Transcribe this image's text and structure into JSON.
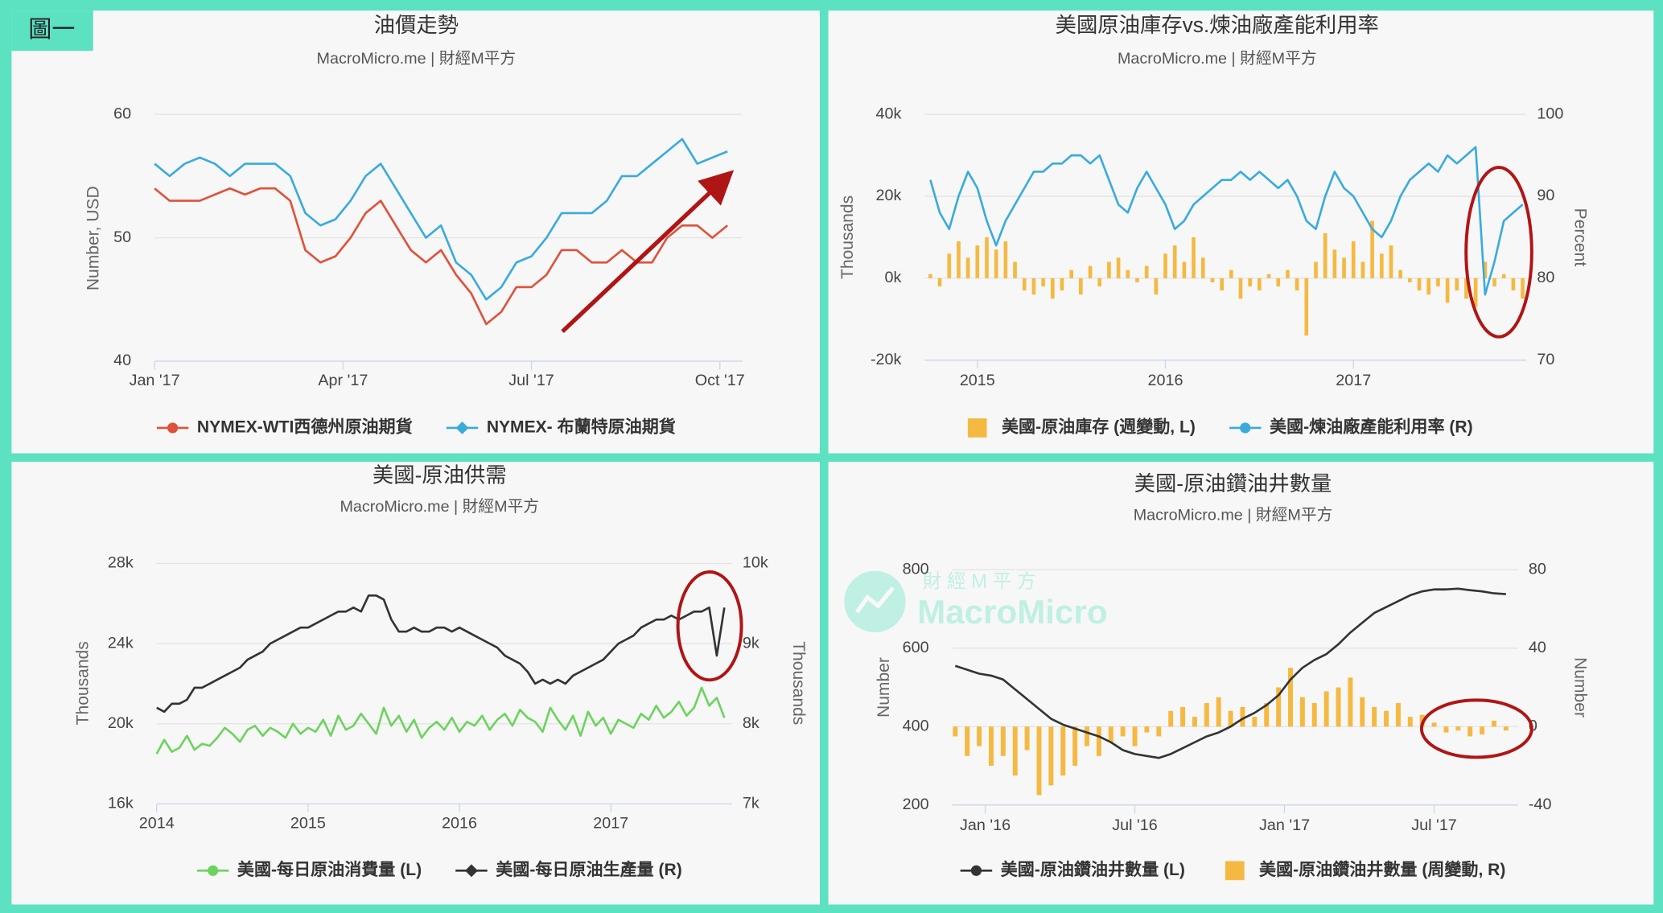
{
  "label": "圖一",
  "watermark_cn": "財 經 M 平 方",
  "watermark_en": "MacroMicro",
  "chart_data": [
    {
      "type": "line",
      "title": "油價走勢",
      "subtitle": "MacroMicro.me | 財經M平方",
      "y_label": "Number, USD",
      "x": [
        2017,
        2017.02,
        2017.04,
        2017.06,
        2017.08,
        2017.1,
        2017.12,
        2017.14,
        2017.16,
        2017.18,
        2017.2,
        2017.22,
        2017.24,
        2017.26,
        2017.28,
        2017.3,
        2017.32,
        2017.34,
        2017.36,
        2017.38,
        2017.4,
        2017.42,
        2017.44,
        2017.46,
        2017.48,
        2017.5,
        2017.52,
        2017.54,
        2017.56,
        2017.58,
        2017.6,
        2017.62,
        2017.64,
        2017.66,
        2017.68,
        2017.7,
        2017.72,
        2017.74,
        2017.76
      ],
      "xlim": [
        2017,
        2017.78
      ],
      "xticks": [
        {
          "value": 2017,
          "label": "Jan '17"
        },
        {
          "value": 2017.25,
          "label": "Apr '17"
        },
        {
          "value": 2017.5,
          "label": "Jul '17"
        },
        {
          "value": 2017.75,
          "label": "Oct '17"
        }
      ],
      "ylim": [
        40,
        60
      ],
      "yticks": [
        40,
        50,
        60
      ],
      "grid": true,
      "series": [
        {
          "name": "NYMEX-WTI西德州原油期貨",
          "color": "#e0513a",
          "marker": "circle",
          "type": "line",
          "axis": "y",
          "values": [
            54,
            53,
            53,
            53,
            53.5,
            54,
            53.5,
            54,
            54,
            53,
            49,
            48,
            48.5,
            50,
            52,
            53,
            51,
            49,
            48,
            49,
            47,
            45.5,
            43,
            44,
            46,
            46,
            47,
            49,
            49,
            48,
            48,
            49,
            48,
            48,
            50,
            51,
            51,
            50,
            51
          ]
        },
        {
          "name": "NYMEX- 布蘭特原油期貨",
          "color": "#3aabdb",
          "marker": "diamond",
          "type": "line",
          "axis": "y",
          "values": [
            56,
            55,
            56,
            56.5,
            56,
            55,
            56,
            56,
            56,
            55,
            52,
            51,
            51.5,
            53,
            55,
            56,
            54,
            52,
            50,
            51,
            48,
            47,
            45,
            46,
            48,
            48.5,
            50,
            52,
            52,
            52,
            53,
            55,
            55,
            56,
            57,
            58,
            56,
            56.5,
            57
          ]
        }
      ]
    },
    {
      "type": "combo",
      "title": "美國原油庫存vs.煉油廠產能利用率",
      "subtitle": "MacroMicro.me | 財經M平方",
      "y_label": "Thousands",
      "y2_label": "Percent",
      "x": [
        2014.75,
        2014.8,
        2014.85,
        2014.9,
        2014.95,
        2015,
        2015.05,
        2015.1,
        2015.15,
        2015.2,
        2015.25,
        2015.3,
        2015.35,
        2015.4,
        2015.45,
        2015.5,
        2015.55,
        2015.6,
        2015.65,
        2015.7,
        2015.75,
        2015.8,
        2015.85,
        2015.9,
        2015.95,
        2016,
        2016.05,
        2016.1,
        2016.15,
        2016.2,
        2016.25,
        2016.3,
        2016.35,
        2016.4,
        2016.45,
        2016.5,
        2016.55,
        2016.6,
        2016.65,
        2016.7,
        2016.75,
        2016.8,
        2016.85,
        2016.9,
        2016.95,
        2017,
        2017.05,
        2017.1,
        2017.15,
        2017.2,
        2017.25,
        2017.3,
        2017.35,
        2017.4,
        2017.45,
        2017.5,
        2017.55,
        2017.6,
        2017.65,
        2017.7,
        2017.75,
        2017.8,
        2017.85,
        2017.9
      ],
      "xlim": [
        2014.72,
        2017.92
      ],
      "xticks": [
        2015,
        2016,
        2017
      ],
      "ylim": [
        -20000,
        40000
      ],
      "yticks": [
        {
          "value": -20000,
          "label": "-20k"
        },
        {
          "value": 0,
          "label": "0k"
        },
        {
          "value": 20000,
          "label": "20k"
        },
        {
          "value": 40000,
          "label": "40k"
        }
      ],
      "y2lim": [
        70,
        100
      ],
      "y2ticks": [
        70,
        80,
        90,
        100
      ],
      "grid": true,
      "series": [
        {
          "name": "美國-原油庫存 (週變動, L)",
          "color": "#f5b942",
          "marker": "square",
          "type": "bar",
          "axis": "y",
          "values": [
            1000,
            -2000,
            6000,
            9000,
            5000,
            8000,
            10000,
            7000,
            9000,
            4000,
            -3000,
            -4000,
            -2000,
            -5000,
            -3000,
            2000,
            -4000,
            3000,
            -2000,
            4000,
            5000,
            2000,
            -1000,
            3000,
            -4000,
            6000,
            8000,
            4000,
            10000,
            5000,
            -1000,
            -3000,
            2000,
            -5000,
            -2000,
            -3000,
            1000,
            -2000,
            2000,
            -3000,
            -14000,
            4000,
            11000,
            7000,
            5000,
            9000,
            4000,
            14000,
            6000,
            8000,
            2000,
            -1000,
            -3000,
            -4000,
            -2000,
            -6000,
            -3000,
            -5000,
            -7000,
            4000,
            -2000,
            1000,
            -3000,
            -5000
          ]
        },
        {
          "name": "美國-煉油廠產能利用率 (R)",
          "color": "#3aabdb",
          "marker": "circle",
          "type": "line",
          "axis": "y2",
          "values": [
            92,
            88,
            86,
            90,
            93,
            91,
            87,
            84,
            87,
            89,
            91,
            93,
            93,
            94,
            94,
            95,
            95,
            94,
            95,
            92,
            89,
            88,
            91,
            93,
            91,
            89,
            86,
            87,
            89,
            90,
            91,
            92,
            92,
            93,
            92,
            93,
            92,
            91,
            92,
            90,
            87,
            86,
            90,
            93,
            91,
            90,
            88,
            86,
            85,
            87,
            90,
            92,
            93,
            94,
            93,
            95,
            94,
            95,
            96,
            78,
            82,
            87,
            88,
            89
          ]
        }
      ]
    },
    {
      "type": "line",
      "title": "美國-原油供需",
      "subtitle": "MacroMicro.me | 財經M平方",
      "y_label": "Thousands",
      "y2_label": "Thousands",
      "x": [
        2014,
        2014.05,
        2014.1,
        2014.15,
        2014.2,
        2014.25,
        2014.3,
        2014.35,
        2014.4,
        2014.45,
        2014.5,
        2014.55,
        2014.6,
        2014.65,
        2014.7,
        2014.75,
        2014.8,
        2014.85,
        2014.9,
        2014.95,
        2015,
        2015.05,
        2015.1,
        2015.15,
        2015.2,
        2015.25,
        2015.3,
        2015.35,
        2015.4,
        2015.45,
        2015.5,
        2015.55,
        2015.6,
        2015.65,
        2015.7,
        2015.75,
        2015.8,
        2015.85,
        2015.9,
        2015.95,
        2016,
        2016.05,
        2016.1,
        2016.15,
        2016.2,
        2016.25,
        2016.3,
        2016.35,
        2016.4,
        2016.45,
        2016.5,
        2016.55,
        2016.6,
        2016.65,
        2016.7,
        2016.75,
        2016.8,
        2016.85,
        2016.9,
        2016.95,
        2017,
        2017.05,
        2017.1,
        2017.15,
        2017.2,
        2017.25,
        2017.3,
        2017.35,
        2017.4,
        2017.45,
        2017.5,
        2017.55,
        2017.6,
        2017.65,
        2017.7,
        2017.75
      ],
      "xlim": [
        2014,
        2017.8
      ],
      "xticks": [
        2014,
        2015,
        2016,
        2017
      ],
      "ylim": [
        16000,
        28000
      ],
      "yticks": [
        {
          "value": 16000,
          "label": "16k"
        },
        {
          "value": 20000,
          "label": "20k"
        },
        {
          "value": 24000,
          "label": "24k"
        },
        {
          "value": 28000,
          "label": "28k"
        }
      ],
      "y2lim": [
        7000,
        10000
      ],
      "y2ticks": [
        {
          "value": 7000,
          "label": "7k"
        },
        {
          "value": 8000,
          "label": "8k"
        },
        {
          "value": 9000,
          "label": "9k"
        },
        {
          "value": 10000,
          "label": "10k"
        }
      ],
      "grid": true,
      "series": [
        {
          "name": "美國-每日原油消費量 (L)",
          "color": "#6dd35f",
          "marker": "circle",
          "type": "line",
          "axis": "y",
          "values": [
            18500,
            19200,
            18600,
            18800,
            19400,
            18700,
            19000,
            18900,
            19300,
            19800,
            19500,
            19100,
            19700,
            19900,
            19400,
            19800,
            19600,
            19300,
            20000,
            19500,
            19800,
            19600,
            20200,
            19400,
            20400,
            19700,
            19900,
            20500,
            20000,
            19500,
            20800,
            19900,
            20400,
            19600,
            20200,
            19300,
            19800,
            20100,
            19700,
            20300,
            19600,
            20100,
            19900,
            20400,
            19700,
            20200,
            20500,
            19900,
            20700,
            20300,
            20100,
            19600,
            20800,
            20200,
            19700,
            20400,
            19400,
            20600,
            19900,
            20300,
            19500,
            20200,
            20000,
            19800,
            20500,
            20200,
            20900,
            20300,
            20600,
            21100,
            20400,
            20800,
            21800,
            20900,
            21300,
            20300
          ]
        },
        {
          "name": "美國-每日原油生產量 (R)",
          "color": "#333333",
          "marker": "diamond",
          "type": "line",
          "axis": "y2",
          "values": [
            8200,
            8150,
            8250,
            8250,
            8300,
            8450,
            8450,
            8500,
            8550,
            8600,
            8650,
            8700,
            8800,
            8850,
            8900,
            9000,
            9050,
            9100,
            9150,
            9200,
            9200,
            9250,
            9300,
            9350,
            9400,
            9400,
            9450,
            9400,
            9600,
            9600,
            9550,
            9300,
            9150,
            9150,
            9200,
            9150,
            9150,
            9200,
            9200,
            9150,
            9200,
            9150,
            9100,
            9050,
            9000,
            8950,
            8850,
            8800,
            8750,
            8650,
            8500,
            8550,
            8500,
            8550,
            8500,
            8600,
            8650,
            8700,
            8750,
            8800,
            8900,
            9000,
            9050,
            9100,
            9200,
            9250,
            9300,
            9300,
            9350,
            9300,
            9350,
            9400,
            9400,
            9450,
            8850,
            9450
          ]
        }
      ]
    },
    {
      "type": "combo",
      "title": "美國-原油鑽油井數量",
      "subtitle": "MacroMicro.me | 財經M平方",
      "y_label": "Number",
      "y2_label": "Number",
      "x": [
        2015.9,
        2015.94,
        2015.98,
        2016.02,
        2016.06,
        2016.1,
        2016.14,
        2016.18,
        2016.22,
        2016.26,
        2016.3,
        2016.34,
        2016.38,
        2016.42,
        2016.46,
        2016.5,
        2016.54,
        2016.58,
        2016.62,
        2016.66,
        2016.7,
        2016.74,
        2016.78,
        2016.82,
        2016.86,
        2016.9,
        2016.94,
        2016.98,
        2017.02,
        2017.06,
        2017.1,
        2017.14,
        2017.18,
        2017.22,
        2017.26,
        2017.3,
        2017.34,
        2017.38,
        2017.42,
        2017.46,
        2017.5,
        2017.54,
        2017.58,
        2017.62,
        2017.66,
        2017.7,
        2017.74
      ],
      "xlim": [
        2015.89,
        2017.78
      ],
      "xticks": [
        {
          "value": 2016,
          "label": "Jan '16"
        },
        {
          "value": 2016.5,
          "label": "Jul '16"
        },
        {
          "value": 2017,
          "label": "Jan '17"
        },
        {
          "value": 2017.5,
          "label": "Jul '17"
        }
      ],
      "ylim": [
        200,
        800
      ],
      "yticks": [
        200,
        400,
        600,
        800
      ],
      "y2lim": [
        -40,
        80
      ],
      "y2ticks": [
        -40,
        0,
        40,
        80
      ],
      "grid": true,
      "series": [
        {
          "name": "美國-原油鑽油井數量 (L)",
          "color": "#333333",
          "marker": "circle",
          "type": "line",
          "axis": "y",
          "values": [
            555,
            545,
            535,
            530,
            520,
            495,
            470,
            445,
            420,
            405,
            395,
            385,
            375,
            360,
            340,
            330,
            325,
            320,
            330,
            345,
            360,
            375,
            385,
            400,
            420,
            435,
            455,
            480,
            520,
            550,
            570,
            585,
            610,
            640,
            665,
            690,
            705,
            720,
            735,
            745,
            750,
            750,
            752,
            748,
            745,
            740,
            738
          ]
        },
        {
          "name": "美國-原油鑽油井數量 (周變動, R)",
          "color": "#f5b942",
          "marker": "square",
          "type": "bar",
          "axis": "y2",
          "values": [
            -5,
            -15,
            -10,
            -20,
            -15,
            -25,
            -12,
            -35,
            -30,
            -25,
            -20,
            -10,
            -15,
            -8,
            -5,
            -10,
            -3,
            -5,
            8,
            10,
            5,
            12,
            15,
            8,
            10,
            5,
            12,
            20,
            30,
            15,
            12,
            18,
            20,
            25,
            15,
            10,
            8,
            12,
            5,
            6,
            2,
            -3,
            -2,
            -5,
            -4,
            3,
            -2
          ]
        }
      ]
    }
  ]
}
